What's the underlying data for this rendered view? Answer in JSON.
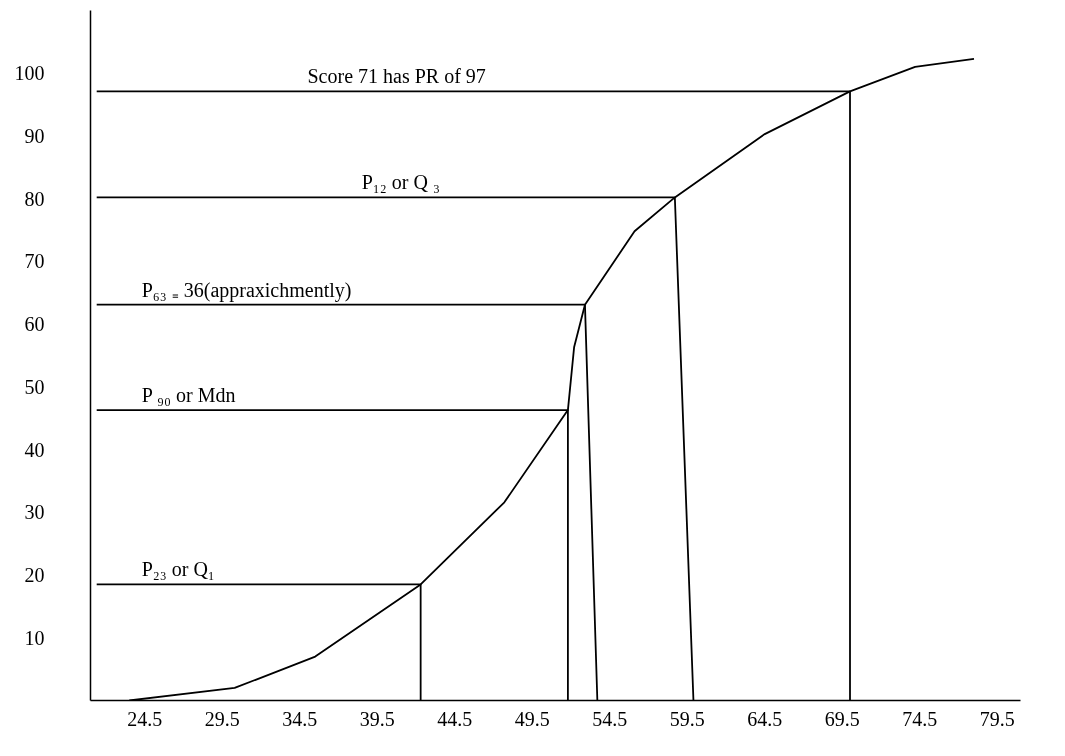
{
  "chart_data": {
    "type": "line",
    "xlim": [
      21,
      81
    ],
    "ylim": [
      0,
      110
    ],
    "xticks": [
      24.5,
      29.5,
      34.5,
      39.5,
      44.5,
      49.5,
      54.5,
      59.5,
      64.5,
      69.5,
      74.5,
      79.5
    ],
    "yticks": [
      10,
      20,
      30,
      40,
      50,
      60,
      70,
      80,
      90,
      100
    ],
    "grid": false,
    "marker": "none",
    "line_style": "solid",
    "series": [
      {
        "color": "#000000",
        "x": [
          23.5,
          30.3,
          35.5,
          42.3,
          47.7,
          51.8,
          52.2,
          52.9,
          56.1,
          58.7,
          64.5,
          70.0,
          74.2,
          78.0
        ],
        "values": [
          0,
          2,
          7,
          18.5,
          31.6,
          46.3,
          56.3,
          63.1,
          74.8,
          80.2,
          90.3,
          97.1,
          101,
          102.3
        ]
      },
      {
        "color": "#000000",
        "x": [
          21.4,
          42.3,
          42.3
        ],
        "values": [
          18.5,
          18.5,
          0
        ]
      },
      {
        "color": "#000000",
        "x": [
          21.4,
          51.8,
          51.8
        ],
        "values": [
          46.3,
          46.3,
          0
        ]
      },
      {
        "color": "#000000",
        "x": [
          21.4,
          52.9,
          53.7
        ],
        "values": [
          63.1,
          63.1,
          0
        ]
      },
      {
        "color": "#000000",
        "x": [
          21.4,
          58.7,
          59.9
        ],
        "values": [
          80.2,
          80.2,
          0
        ]
      },
      {
        "color": "#000000",
        "x": [
          21.4,
          70.0,
          70.0
        ],
        "values": [
          97.1,
          97.1,
          0
        ]
      }
    ],
    "annotations": [
      {
        "text": "Score 71 has PR of 97",
        "x": 35.0,
        "y": 97.1
      },
      {
        "text": "P₁₂ or Q ₃",
        "x": 38.5,
        "y": 80.2
      },
      {
        "text": "P₆₃ ₌ 36(appraxichmently)",
        "x": 24.3,
        "y": 63.1
      },
      {
        "text": "P ₉₀ or Mdn",
        "x": 24.3,
        "y": 46.3
      },
      {
        "text": "P₂₃ or Q₁",
        "x": 24.3,
        "y": 18.5
      }
    ]
  }
}
